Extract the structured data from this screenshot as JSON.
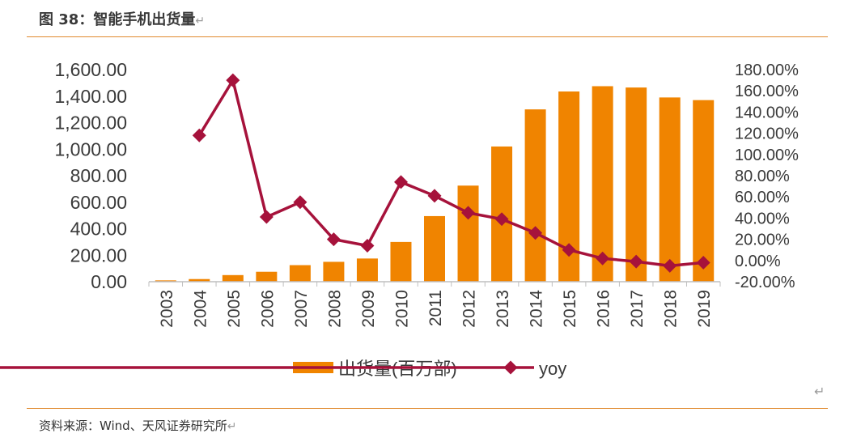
{
  "header": {
    "title": "图 38：智能手机出货量",
    "return_mark": "↵"
  },
  "source": {
    "text": "资料来源：Wind、天风证券研究所",
    "return_mark": "↵"
  },
  "stray_mark": "↵",
  "colors": {
    "bar": "#f08400",
    "line": "#a6123b",
    "rule": "#e08a2e",
    "axis": "#bfbfbf"
  },
  "chart_data": {
    "type": "bar+line",
    "categories": [
      "2003",
      "2004",
      "2005",
      "2006",
      "2007",
      "2008",
      "2009",
      "2010",
      "2011",
      "2012",
      "2013",
      "2014",
      "2015",
      "2016",
      "2017",
      "2018",
      "2019"
    ],
    "series": [
      {
        "name": "出货量(百万部)",
        "type": "bar",
        "axis": "left",
        "values": [
          10,
          20,
          50,
          75,
          125,
          150,
          175,
          300,
          495,
          725,
          1020,
          1300,
          1435,
          1475,
          1465,
          1390,
          1370
        ]
      },
      {
        "name": "yoy",
        "type": "line",
        "axis": "right",
        "unit": "%",
        "values": [
          null,
          118,
          170,
          41,
          55,
          20,
          14,
          74,
          61,
          45,
          39,
          26,
          10,
          2,
          -1,
          -5,
          -2
        ]
      }
    ],
    "y_left": {
      "min": 0,
      "max": 1600,
      "ticks": [
        "0.00",
        "200.00",
        "400.00",
        "600.00",
        "800.00",
        "1,000.00",
        "1,200.00",
        "1,400.00",
        "1,600.00"
      ]
    },
    "y_right": {
      "min": -20,
      "max": 180,
      "ticks": [
        "-20.00%",
        "0.00%",
        "20.00%",
        "40.00%",
        "60.00%",
        "80.00%",
        "100.00%",
        "120.00%",
        "140.00%",
        "160.00%",
        "180.00%"
      ]
    },
    "legend": {
      "position": "bottom"
    },
    "grid": false
  }
}
